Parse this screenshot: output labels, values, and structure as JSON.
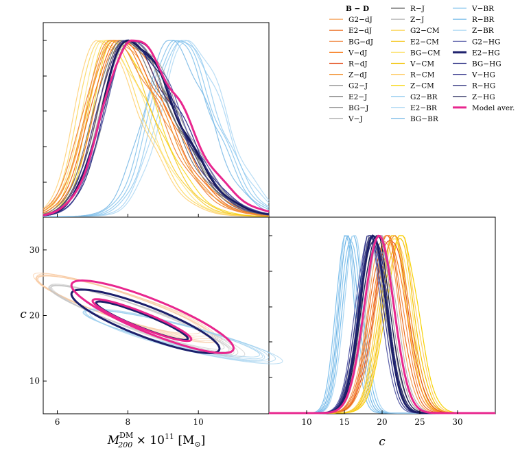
{
  "chart_data": [
    {
      "type": "line",
      "title": "",
      "panel": "marginal-mass",
      "xlabel": "M_200^DM × 10^11 [M_⊙]",
      "xlim": [
        5.6,
        12.0
      ],
      "xticks": [
        6,
        8,
        10
      ],
      "xtick_labels": [
        "",
        "",
        ""
      ],
      "ylabel": "",
      "ytick_labels": [],
      "series": [
        {
          "name": "G2-dJ",
          "group": "dJ",
          "peak": 7.6
        },
        {
          "name": "E2-dJ",
          "group": "dJ",
          "peak": 7.7
        },
        {
          "name": "BG-dJ",
          "group": "dJ",
          "peak": 7.5
        },
        {
          "name": "V-dJ",
          "group": "dJ",
          "peak": 7.8
        },
        {
          "name": "R-dJ",
          "group": "dJ",
          "peak": 7.9
        },
        {
          "name": "Z-dJ",
          "group": "dJ",
          "peak": 7.6
        },
        {
          "name": "G2-J",
          "group": "J",
          "peak": 7.9
        },
        {
          "name": "E2-J",
          "group": "J",
          "peak": 8.0
        },
        {
          "name": "BG-J",
          "group": "J",
          "peak": 7.8
        },
        {
          "name": "V-J",
          "group": "J",
          "peak": 8.1
        },
        {
          "name": "R-J",
          "group": "J",
          "peak": 7.9
        },
        {
          "name": "Z-J",
          "group": "J",
          "peak": 8.0
        },
        {
          "name": "G2-CM",
          "group": "CM",
          "peak": 7.2
        },
        {
          "name": "E2-CM",
          "group": "CM",
          "peak": 7.4
        },
        {
          "name": "BG-CM",
          "group": "CM",
          "peak": 7.3
        },
        {
          "name": "V-CM",
          "group": "CM",
          "peak": 7.5
        },
        {
          "name": "R-CM",
          "group": "CM",
          "peak": 7.1
        },
        {
          "name": "Z-CM",
          "group": "CM",
          "peak": 7.6
        },
        {
          "name": "G2-BR",
          "group": "BR",
          "peak": 9.4
        },
        {
          "name": "E2-BR",
          "group": "BR",
          "peak": 9.6
        },
        {
          "name": "BG-BR",
          "group": "BR",
          "peak": 9.2
        },
        {
          "name": "V-BR",
          "group": "BR",
          "peak": 9.5
        },
        {
          "name": "R-BR",
          "group": "BR",
          "peak": 9.3
        },
        {
          "name": "Z-BR",
          "group": "BR",
          "peak": 9.7
        },
        {
          "name": "G2-HG",
          "group": "HG",
          "peak": 8.1
        },
        {
          "name": "E2-HG",
          "group": "HG",
          "peak": 8.0
        },
        {
          "name": "BG-HG",
          "group": "HG",
          "peak": 8.1
        },
        {
          "name": "V-HG",
          "group": "HG",
          "peak": 7.9
        },
        {
          "name": "R-HG",
          "group": "HG",
          "peak": 8.0
        },
        {
          "name": "Z-HG",
          "group": "HG",
          "peak": 8.0
        },
        {
          "name": "Model aver.",
          "group": "avg",
          "peak": 8.1
        }
      ]
    },
    {
      "type": "scatter",
      "title": "",
      "panel": "joint-contours",
      "xlabel": "M_200^DM × 10^11 [M_⊙]",
      "ylabel": "c",
      "xlim": [
        5.6,
        12.0
      ],
      "ylim": [
        5,
        35
      ],
      "xticks": [
        6,
        8,
        10
      ],
      "xtick_labels": [
        "6",
        "8",
        "10"
      ],
      "yticks": [
        10,
        20,
        30
      ],
      "ytick_labels": [
        "10",
        "20",
        "30"
      ],
      "contours": [
        {
          "name": "dJ/CM outer",
          "group": "light-orange",
          "center": [
            7.9,
            21.3
          ],
          "rx": 2.5,
          "ry": 3.9,
          "tilt": -0.8
        },
        {
          "name": "J outer",
          "group": "light-gray",
          "center": [
            8.4,
            19.4
          ],
          "rx": 2.6,
          "ry": 3.5,
          "tilt": -0.85
        },
        {
          "name": "BR outer",
          "group": "light-blue",
          "center": [
            9.4,
            17.0
          ],
          "rx": 2.6,
          "ry": 3.2,
          "tilt": -0.6
        },
        {
          "name": "E2-HG outer",
          "group": "navy",
          "center": [
            8.5,
            19.1
          ],
          "rx": 2.1,
          "ry": 4.5,
          "tilt": -0.9
        },
        {
          "name": "E2-HG inner",
          "group": "navy",
          "center": [
            8.4,
            19.2
          ],
          "rx": 1.3,
          "ry": 2.0,
          "tilt": -0.95
        },
        {
          "name": "Model aver. outer",
          "group": "magenta",
          "center": [
            8.7,
            19.8
          ],
          "rx": 2.3,
          "ry": 5.0,
          "tilt": -0.95
        },
        {
          "name": "Model aver. inner",
          "group": "magenta",
          "center": [
            8.4,
            19.3
          ],
          "rx": 1.4,
          "ry": 2.3,
          "tilt": -0.95
        }
      ]
    },
    {
      "type": "line",
      "title": "",
      "panel": "marginal-concentration",
      "xlabel": "c",
      "xlim": [
        5,
        35
      ],
      "xticks": [
        10,
        15,
        20,
        25,
        30
      ],
      "xtick_labels": [
        "10",
        "15",
        "20",
        "25",
        "30"
      ],
      "ylabel": "",
      "ytick_labels": [],
      "peaks": {
        "BR": 15.7,
        "HG": 18.8,
        "J": 19.2,
        "dJ": 20.8,
        "CM": 22.0,
        "Model aver.": 19.6
      }
    }
  ],
  "legend": {
    "title": "B − D",
    "columns": [
      [
        {
          "label": "G2−dJ",
          "color": "#f6a25a",
          "width": 1.2
        },
        {
          "label": "E2−dJ",
          "color": "#ec6a1c",
          "width": 1.2
        },
        {
          "label": "BG−dJ",
          "color": "#f08a45",
          "width": 1.2
        },
        {
          "label": "V−dJ",
          "color": "#f77b1c",
          "width": 1.2
        },
        {
          "label": "R−dJ",
          "color": "#e3501f",
          "width": 1.2
        },
        {
          "label": "Z−dJ",
          "color": "#f29030",
          "width": 1.2
        },
        {
          "label": "G2−J",
          "color": "#8c8c8c",
          "width": 1.2
        },
        {
          "label": "E2−J",
          "color": "#666666",
          "width": 1.2
        },
        {
          "label": "BG−J",
          "color": "#7a7a7a",
          "width": 1.2
        },
        {
          "label": "V−J",
          "color": "#a0a0a0",
          "width": 1.2
        }
      ],
      [
        {
          "label": "R−J",
          "color": "#5e5e5e",
          "width": 1.2
        },
        {
          "label": "Z−J",
          "color": "#b2b2b2",
          "width": 1.2
        },
        {
          "label": "G2−CM",
          "color": "#fbd24b",
          "width": 1.2
        },
        {
          "label": "E2−CM",
          "color": "#f5c518",
          "width": 1.2
        },
        {
          "label": "BG−CM",
          "color": "#fde272",
          "width": 1.2
        },
        {
          "label": "V−CM",
          "color": "#f2c200",
          "width": 1.2
        },
        {
          "label": "R−CM",
          "color": "#ffcc66",
          "width": 1.2
        },
        {
          "label": "Z−CM",
          "color": "#f6d200",
          "width": 1.2
        },
        {
          "label": "G2−BR",
          "color": "#7fc0ec",
          "width": 1.2
        },
        {
          "label": "E2−BR",
          "color": "#9ed0f2",
          "width": 1.2
        },
        {
          "label": "BG−BR",
          "color": "#6bb2e3",
          "width": 1.2
        }
      ],
      [
        {
          "label": "V−BR",
          "color": "#8ac6ee",
          "width": 1.2
        },
        {
          "label": "R−BR",
          "color": "#74bae9",
          "width": 1.2
        },
        {
          "label": "Z−BR",
          "color": "#a8d5f3",
          "width": 1.2
        },
        {
          "label": "G2−HG",
          "color": "#5a5ea8",
          "width": 1.2
        },
        {
          "label": "E2−HG",
          "color": "#1c1f6b",
          "width": 3
        },
        {
          "label": "BG−HG",
          "color": "#2d3085",
          "width": 1.2
        },
        {
          "label": "V−HG",
          "color": "#3d3f90",
          "width": 1.2
        },
        {
          "label": "R−HG",
          "color": "#272a78",
          "width": 1.2
        },
        {
          "label": "Z−HG",
          "color": "#14164f",
          "width": 1.2
        },
        {
          "label": "Model aver.",
          "color": "#e8268e",
          "width": 3
        }
      ]
    ]
  },
  "colors": {
    "navy": "#1c1f6b",
    "magenta": "#e8268e",
    "light-blue": "#9ccfee",
    "light-orange": "#f8c9a0",
    "light-gray": "#c6c6c6"
  }
}
